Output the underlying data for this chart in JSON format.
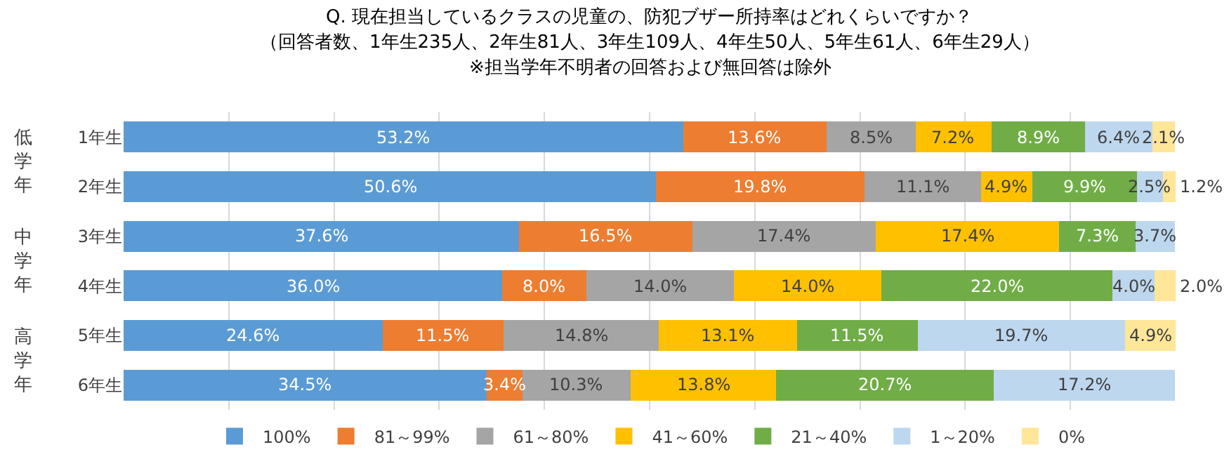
{
  "chart_data": {
    "type": "bar",
    "orientation": "horizontal",
    "stacked": true,
    "title": "Q. 現在担当しているクラスの児童の、防犯ブザー所持率はどれくらいですか？",
    "subtitle": "（回答者数、1年生235人、2年生81人、3年生109人、4年生50人、5年生61人、6年生29人）",
    "categories": [
      "1年生",
      "2年生",
      "3年生",
      "4年生",
      "5年生",
      "6年生"
    ],
    "series": [
      {
        "name": "100%",
        "color": "#5b9bd5",
        "values": [
          53.2,
          50.6,
          37.6,
          36.0,
          24.6,
          34.5
        ],
        "value_labels": [
          "53.2%",
          "50.6%",
          "37.6%",
          "36.0%",
          "24.6%",
          "34.5%"
        ]
      },
      {
        "name": "81～99%",
        "color": "#ed7d31",
        "values": [
          13.6,
          19.8,
          16.5,
          8.0,
          11.5,
          3.4
        ],
        "value_labels": [
          "13.6%",
          "19.8%",
          "16.5%",
          "8.0%",
          "11.5%",
          "3.4%"
        ]
      },
      {
        "name": "61～80%",
        "color": "#a5a5a5",
        "values": [
          8.5,
          11.1,
          17.4,
          14.0,
          14.8,
          10.3
        ],
        "value_labels": [
          "8.5%",
          "11.1%",
          "17.4%",
          "14.0%",
          "14.8%",
          "10.3%"
        ]
      },
      {
        "name": "41～60%",
        "color": "#ffc000",
        "values": [
          7.2,
          4.9,
          17.4,
          14.0,
          13.1,
          13.8
        ],
        "value_labels": [
          "7.2%",
          "4.9%",
          "17.4%",
          "14.0%",
          "13.1%",
          "13.8%"
        ]
      },
      {
        "name": "21～40%",
        "color": "#70ad47",
        "values": [
          8.9,
          9.9,
          7.3,
          22.0,
          11.5,
          20.7
        ],
        "value_labels": [
          "8.9%",
          "9.9%",
          "7.3%",
          "22.0%",
          "11.5%",
          "20.7%"
        ]
      },
      {
        "name": "1～20%",
        "color": "#bdd7ee",
        "values": [
          6.4,
          2.5,
          3.7,
          4.0,
          19.7,
          17.2
        ],
        "value_labels": [
          "6.4%",
          "2.5%",
          "3.7%",
          "4.0%",
          "19.7%",
          "17.2%"
        ]
      },
      {
        "name": "0%",
        "color": "#ffe699",
        "values": [
          2.1,
          1.2,
          0,
          2.0,
          4.9,
          0
        ],
        "value_labels": [
          "2.1%",
          "1.2%",
          null,
          "2.0%",
          "4.9%",
          null
        ]
      }
    ],
    "xlim": [
      0,
      100
    ],
    "xticks": [
      {
        "value": 10,
        "label": null
      },
      {
        "value": 20,
        "label": null
      },
      {
        "value": 30,
        "label": null
      },
      {
        "value": 40,
        "label": null
      },
      {
        "value": 50,
        "label": null
      },
      {
        "value": 60,
        "label": null
      },
      {
        "value": 70,
        "label": null
      },
      {
        "value": 80,
        "label": null
      },
      {
        "value": 90,
        "label": null
      }
    ],
    "tick_labels": "y",
    "grid": "x",
    "legend": "bottom",
    "annotations": [
      "※担当学年不明者の回答および無回答は除外",
      "低学年",
      "中学年",
      "高学年"
    ]
  }
}
